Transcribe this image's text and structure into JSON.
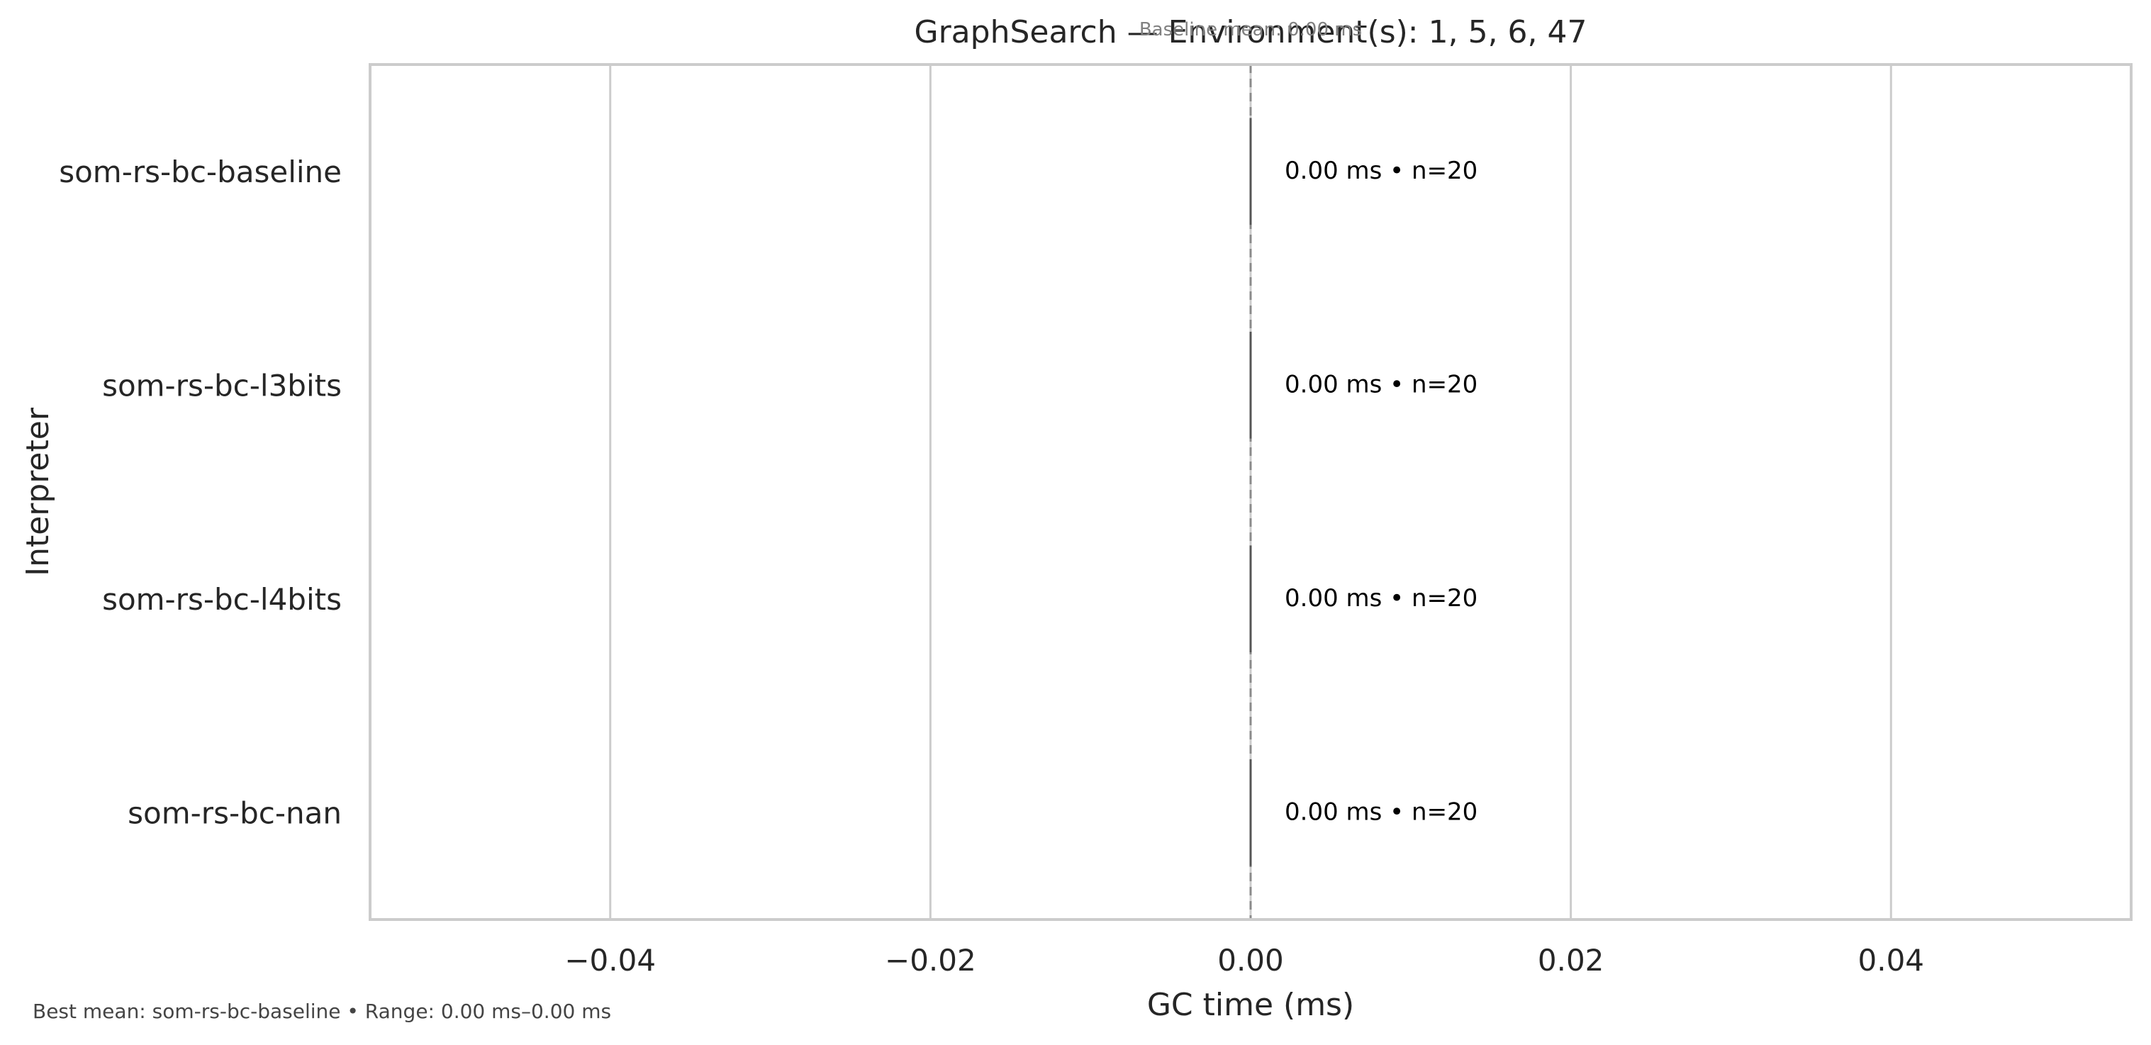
{
  "chart_data": {
    "type": "bar",
    "orientation": "horizontal",
    "title": "GraphSearch — Environment(s): 1, 5, 6, 47",
    "subtitle": "Baseline mean: 0.00 ms",
    "xlabel": "GC time (ms)",
    "ylabel": "Interpreter",
    "xlim": [
      -0.055,
      0.055
    ],
    "xticks": [
      -0.04,
      -0.02,
      0.0,
      0.02,
      0.04
    ],
    "xtick_labels": [
      "−0.04",
      "−0.02",
      "0.00",
      "0.02",
      "0.04"
    ],
    "grid": true,
    "baseline_value": 0.0,
    "categories": [
      "som-rs-bc-baseline",
      "som-rs-bc-l3bits",
      "som-rs-bc-l4bits",
      "som-rs-bc-nan"
    ],
    "values": [
      0.0,
      0.0,
      0.0,
      0.0
    ],
    "annotations": [
      "0.00 ms • n=20",
      "0.00 ms • n=20",
      "0.00 ms • n=20",
      "0.00 ms • n=20"
    ],
    "footer": "Best mean: som-rs-bc-baseline • Range: 0.00 ms–0.00 ms"
  },
  "colors": {
    "frame": "#cccccc",
    "grid": "#cccccc",
    "bar": "#555555",
    "baseline": "#8a8a8a",
    "text": "#262626",
    "subtitle": "#808080",
    "footer": "#444444"
  }
}
